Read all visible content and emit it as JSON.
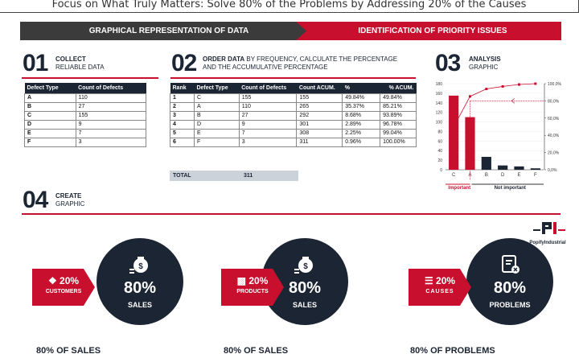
{
  "header": {
    "title": "Focus on What Truly Matters: Solve 80% of the Problems by Addressing 20% of the Causes"
  },
  "banners": {
    "left": "GRAPHICAL REPRESENTATION OF DATA",
    "right": "IDENTIFICATION OF PRIORITY ISSUES"
  },
  "steps": {
    "s1": {
      "num": "01",
      "bold": "COLLECT",
      "text": "RELIABLE DATA"
    },
    "s2": {
      "num": "02",
      "bold": "ORDER DATA",
      "text": " BY FREQUENCY, CALCULATE THE PERCENTAGE AND THE ACCUMULATIVE PERCENTAGE"
    },
    "s3": {
      "num": "03",
      "bold": "ANALYSIS",
      "text": "GRAPHIC"
    },
    "s4": {
      "num": "04",
      "bold": "CREATE",
      "text": "GRAPHIC"
    }
  },
  "table1": {
    "headers": [
      "Defect Type",
      "Count of Defects"
    ],
    "rows": [
      [
        "A",
        "110"
      ],
      [
        "B",
        "27"
      ],
      [
        "C",
        "155"
      ],
      [
        "D",
        "9"
      ],
      [
        "E",
        "7"
      ],
      [
        "F",
        "3"
      ]
    ]
  },
  "table2": {
    "headers": [
      "Rank",
      "Defect Type",
      "Count of Defects",
      "Count ACUM.",
      "%",
      "% ACUM."
    ],
    "rows": [
      [
        "1",
        "C",
        "155",
        "155",
        "49.84%",
        "49.84%"
      ],
      [
        "2",
        "A",
        "110",
        "265",
        "35.37%",
        "85.21%"
      ],
      [
        "3",
        "B",
        "27",
        "292",
        "8.68%",
        "93.89%"
      ],
      [
        "4",
        "D",
        "9",
        "301",
        "2.89%",
        "96.78%"
      ],
      [
        "5",
        "E",
        "7",
        "308",
        "2.25%",
        "99.04%"
      ],
      [
        "6",
        "F",
        "3",
        "311",
        "0.96%",
        "100.00%"
      ]
    ],
    "total_label": "TOTAL",
    "total_value": "311"
  },
  "chart_data": {
    "type": "bar",
    "categories": [
      "C",
      "A",
      "B",
      "D",
      "E",
      "F"
    ],
    "values": [
      155,
      110,
      27,
      9,
      7,
      3
    ],
    "cumulative_pct": [
      49.84,
      85.21,
      93.89,
      96.78,
      99.04,
      100.0
    ],
    "ylim": [
      0,
      180
    ],
    "yticks": [
      "0",
      "20",
      "40",
      "60",
      "80",
      "100",
      "120",
      "140",
      "160",
      "180"
    ],
    "y2ticks": [
      "0,0%",
      "20,0%",
      "40,0%",
      "60,0%",
      "80,0%",
      "100,0%"
    ],
    "important_label": "Important",
    "not_important_label": "Not important",
    "colors": {
      "highlight": "#c8102e",
      "normal": "#1c2533",
      "line": "#c8102e"
    }
  },
  "brand": {
    "name": "PopifyIndustrial"
  },
  "cards": [
    {
      "tag_pct": "20%",
      "tag_label": "CUSTOMERS",
      "tag_icon": "people-icon",
      "circle_pct": "80%",
      "circle_label": "SALES",
      "caption": "80% OF SALES"
    },
    {
      "tag_pct": "20%",
      "tag_label": "PRODUCTS",
      "tag_icon": "box-icon",
      "circle_pct": "80%",
      "circle_label": "SALES",
      "caption": "80% OF SALES"
    },
    {
      "tag_pct": "20%",
      "tag_label": "CAUSES",
      "tag_icon": "list-icon",
      "circle_pct": "80%",
      "circle_label": "PROBLEMS",
      "caption": "80% OF PROBLEMS"
    }
  ]
}
